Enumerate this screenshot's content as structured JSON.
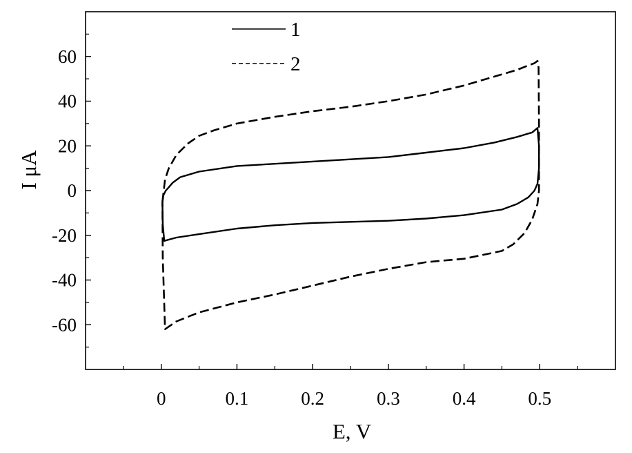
{
  "chart_data": {
    "type": "line",
    "xlabel": "E, V",
    "ylabel": "I μA",
    "xlim": [
      -0.1,
      0.6
    ],
    "ylim": [
      -80,
      80
    ],
    "x_ticks": [
      0,
      0.1,
      0.2,
      0.3,
      0.4,
      0.5
    ],
    "x_tick_labels": [
      "0",
      "0.1",
      "0.2",
      "0.3",
      "0.4",
      "0.5"
    ],
    "y_ticks": [
      -60,
      -40,
      -20,
      0,
      20,
      40,
      60
    ],
    "y_tick_labels": [
      "-60",
      "-40",
      "-20",
      "0",
      "20",
      "40",
      "60"
    ],
    "grid": false,
    "legend_position": "top-left",
    "series": [
      {
        "name": "1",
        "style": "solid",
        "color": "#000000",
        "x": [
          0.0015,
          0.003,
          0.006,
          0.01,
          0.015,
          0.025,
          0.05,
          0.1,
          0.15,
          0.2,
          0.25,
          0.3,
          0.35,
          0.4,
          0.44,
          0.47,
          0.49,
          0.497,
          0.499,
          0.499,
          0.497,
          0.493,
          0.485,
          0.47,
          0.45,
          0.4,
          0.35,
          0.3,
          0.25,
          0.2,
          0.15,
          0.1,
          0.05,
          0.02,
          0.004,
          0.002,
          0.0015
        ],
        "y": [
          -5,
          -2,
          0,
          1.5,
          3.5,
          6,
          8.5,
          11,
          12,
          13,
          14,
          15,
          17,
          19,
          21.5,
          24,
          26,
          28,
          20,
          10,
          3,
          0,
          -3,
          -6,
          -8.5,
          -11,
          -12.5,
          -13.5,
          -14,
          -14.5,
          -15.5,
          -17,
          -19.5,
          -21,
          -22.5,
          -15,
          -5
        ]
      },
      {
        "name": "2",
        "style": "dashed",
        "color": "#000000",
        "x": [
          0.0015,
          0.005,
          0.01,
          0.02,
          0.035,
          0.05,
          0.07,
          0.1,
          0.15,
          0.2,
          0.25,
          0.3,
          0.35,
          0.4,
          0.44,
          0.47,
          0.485,
          0.493,
          0.497,
          0.4985,
          0.499,
          0.499,
          0.497,
          0.49,
          0.48,
          0.465,
          0.45,
          0.4,
          0.35,
          0.3,
          0.25,
          0.2,
          0.15,
          0.1,
          0.05,
          0.02,
          0.005,
          0.002,
          0.0015
        ],
        "y": [
          -5,
          5,
          10,
          16,
          21,
          24.5,
          27,
          30,
          33,
          35.5,
          37.5,
          40,
          43,
          47,
          51,
          54,
          56,
          57,
          58,
          55,
          30,
          0,
          -6,
          -13,
          -19,
          -24,
          -27,
          -30.5,
          -32,
          -35,
          -38.5,
          -42.5,
          -46.5,
          -50,
          -54.5,
          -58.5,
          -62,
          -30,
          -5
        ]
      }
    ]
  }
}
